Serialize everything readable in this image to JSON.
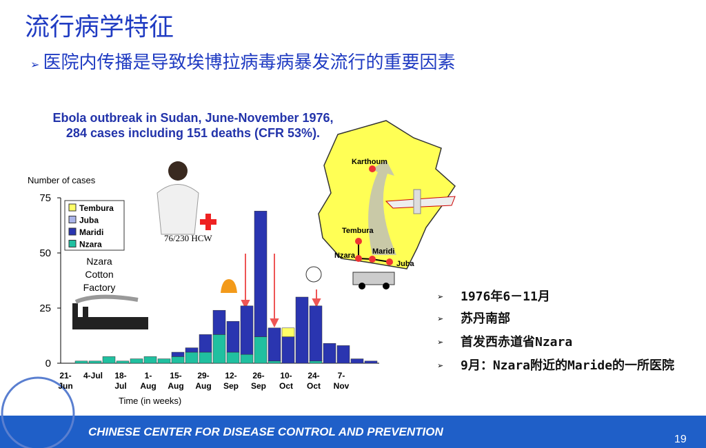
{
  "title": "流行病学特征",
  "bullet": "医院内传播是导致埃博拉病毒病暴发流行的重要因素",
  "chart_data": {
    "type": "bar",
    "stacked": true,
    "title": "Ebola outbreak in Sudan, June-November 1976, 284 cases including 151 deaths (CFR 53%).",
    "y_label": "Number of cases",
    "x_label": "Time (in weeks)",
    "categories": [
      "21-Jun",
      null,
      "4-Jul",
      null,
      "18-Jul",
      null,
      "1-Aug",
      null,
      "15-Aug",
      null,
      "29-Aug",
      null,
      "12-Sep",
      null,
      "26-Sep",
      null,
      "10-Oct",
      null,
      "24-Oct",
      null,
      "7-Nov",
      null
    ],
    "series": [
      {
        "name": "Tembura",
        "color": "#ffff66",
        "values": [
          0,
          0,
          0,
          0,
          0,
          0,
          0,
          0,
          0,
          0,
          0,
          0,
          0,
          0,
          0,
          4,
          0,
          0,
          0,
          0,
          0,
          0
        ]
      },
      {
        "name": "Juba",
        "color": "#aab4e8",
        "values": [
          0,
          0,
          0,
          0,
          0,
          0,
          0,
          0,
          0,
          0,
          0,
          0,
          0,
          0,
          0,
          0,
          0,
          0,
          0,
          0,
          0,
          0
        ]
      },
      {
        "name": "Maridi",
        "color": "#2a35b0",
        "values": [
          0,
          0,
          0,
          0,
          0,
          0,
          0,
          2,
          2,
          8,
          11,
          14,
          22,
          57,
          15,
          12,
          30,
          25,
          9,
          8,
          2,
          1
        ]
      },
      {
        "name": "Nzara",
        "color": "#20c0a0",
        "values": [
          1,
          1,
          3,
          1,
          2,
          3,
          2,
          3,
          5,
          5,
          13,
          5,
          4,
          12,
          1,
          0,
          0,
          1,
          0,
          0,
          0,
          0
        ]
      }
    ],
    "ylim": [
      0,
      75
    ],
    "yticks": [
      0,
      25,
      50,
      75
    ],
    "grid": false
  },
  "annotations": {
    "factory": "Nzara Cotton Factory",
    "hcw": "76/230 HCW"
  },
  "map_labels": [
    "Karthoum",
    "Tembura",
    "Maridi",
    "Nzara",
    "Juba"
  ],
  "facts": [
    "1976年6－11月",
    "苏丹南部",
    "首发西赤道省Nzara",
    "9月：Nzara附近的Maride的一所医院"
  ],
  "footer": "CHINESE CENTER FOR DISEASE CONTROL AND PREVENTION",
  "page_number": "19"
}
